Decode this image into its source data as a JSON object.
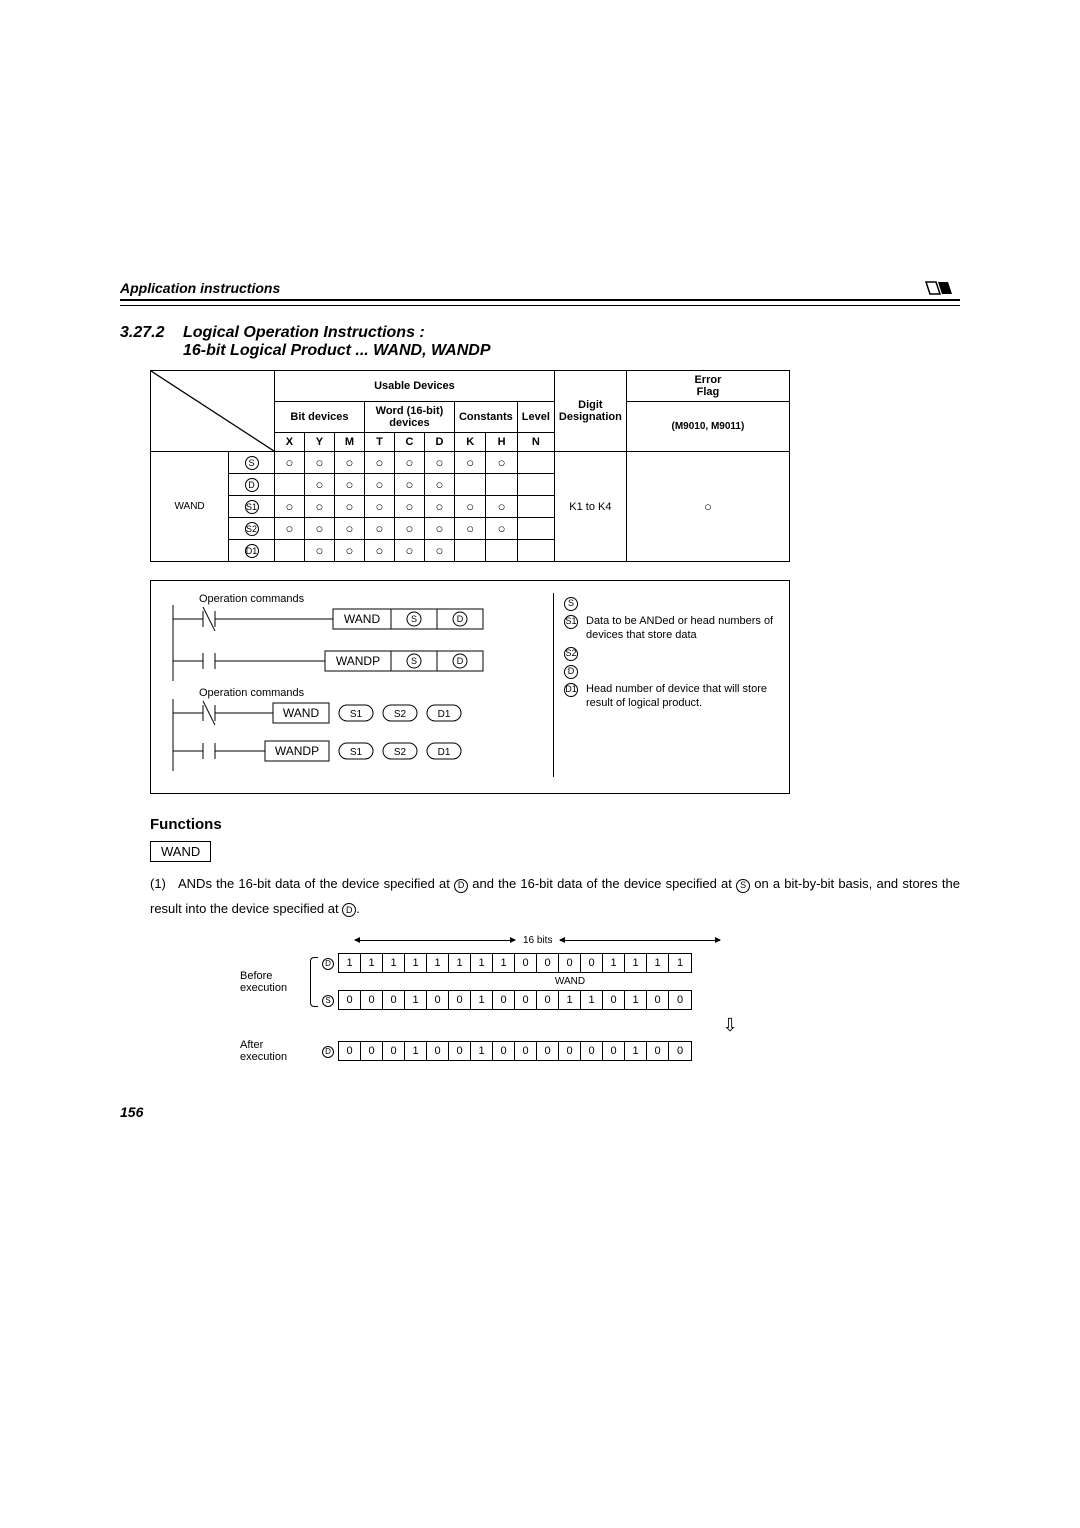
{
  "header": {
    "title": "Application instructions"
  },
  "section": {
    "num": "3.27.2",
    "title_l1": "Logical Operation Instructions :",
    "title_l2": "16-bit Logical Product ... WAND, WANDP"
  },
  "table": {
    "header_usable": "Usable Devices",
    "header_bit": "Bit devices",
    "header_word": "Word (16-bit) devices",
    "header_const": "Constants",
    "header_level": "Level",
    "header_digit": "Digit Designation",
    "header_error_l1": "Error",
    "header_error_l2": "Flag",
    "header_m9010": "(M9010, M9011)",
    "cols": [
      "X",
      "Y",
      "M",
      "T",
      "C",
      "D",
      "K",
      "H",
      "N"
    ],
    "row_label": "WAND",
    "digit_value": "K1 to K4",
    "rowsyms": [
      "S",
      "D",
      "S1",
      "S2",
      "D1"
    ],
    "cells": [
      [
        "○",
        "○",
        "○",
        "○",
        "○",
        "○",
        "○",
        "○",
        ""
      ],
      [
        "",
        "○",
        "○",
        "○",
        "○",
        "○",
        "",
        "",
        ""
      ],
      [
        "○",
        "○",
        "○",
        "○",
        "○",
        "○",
        "○",
        "○",
        ""
      ],
      [
        "○",
        "○",
        "○",
        "○",
        "○",
        "○",
        "○",
        "○",
        ""
      ],
      [
        "",
        "○",
        "○",
        "○",
        "○",
        "○",
        "",
        "",
        ""
      ]
    ],
    "error_mark": "○"
  },
  "ladder": {
    "op_cmd": "Operation commands",
    "i1": "WAND",
    "i2": "WANDP",
    "legend_data": "Data to be ANDed or head numbers of devices that store data",
    "legend_head": "Head number of device that will store result of logical product.",
    "syms": {
      "S": "S",
      "D": "D",
      "S1": "S1",
      "S2": "S2",
      "D1": "D1"
    },
    "ov": {
      "S": "S",
      "D": "D",
      "S1": "S1",
      "S2": "S2",
      "D1": "D1"
    }
  },
  "functions": {
    "heading": "Functions",
    "wand": "WAND",
    "p1_num": "(1)",
    "p1_a": "ANDs the 16-bit data of the device specified at ",
    "p1_b": " and the 16-bit data of the device specified at ",
    "p1_c": " on a bit-by-bit basis, and stores the result into the device specified at ",
    "p1_d": "."
  },
  "bits": {
    "title": "16 bits",
    "before": "Before execution",
    "after": "After execution",
    "wand": "WAND",
    "rowD": [
      "1",
      "1",
      "1",
      "1",
      "1",
      "1",
      "1",
      "1",
      "0",
      "0",
      "0",
      "0",
      "1",
      "1",
      "1",
      "1"
    ],
    "rowS": [
      "0",
      "0",
      "0",
      "1",
      "0",
      "0",
      "1",
      "0",
      "0",
      "0",
      "1",
      "1",
      "0",
      "1",
      "0",
      "0"
    ],
    "rowR": [
      "0",
      "0",
      "0",
      "1",
      "0",
      "0",
      "1",
      "0",
      "0",
      "0",
      "0",
      "0",
      "0",
      "1",
      "0",
      "0"
    ]
  },
  "page": "156"
}
